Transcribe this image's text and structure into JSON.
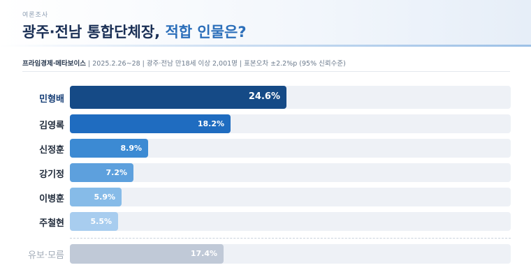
{
  "header": {
    "kicker": "여론조사",
    "title_main": "광주·전남 통합단체장, ",
    "title_accent": "적합 인물은?"
  },
  "source": {
    "org": "프라임경제·메타보이스",
    "details": " | 2025.2.26~28 | 광주·전남 만18세 이상 2,001명 | 표본오차 ±2.2%p (95% 신뢰수준)"
  },
  "colors": {
    "track": "#eef1f6",
    "bars": [
      "#154a86",
      "#1f6cc0",
      "#3c8ad3",
      "#5da0dd",
      "#86bbe8",
      "#a8cdef"
    ],
    "undecided": "#c0c9d7"
  },
  "chart_data": {
    "type": "bar",
    "orientation": "horizontal",
    "categories": [
      "민형배",
      "김영록",
      "신정훈",
      "강기정",
      "이병훈",
      "주철현",
      "유보·모름"
    ],
    "values": [
      24.6,
      18.2,
      8.9,
      7.2,
      5.9,
      5.5,
      17.4
    ],
    "value_labels": [
      "24.6%",
      "18.2%",
      "8.9%",
      "7.2%",
      "5.9%",
      "5.5%",
      "17.4%"
    ],
    "unit": "%",
    "xlim": [
      0,
      50
    ],
    "grid": false,
    "legend": "none"
  }
}
